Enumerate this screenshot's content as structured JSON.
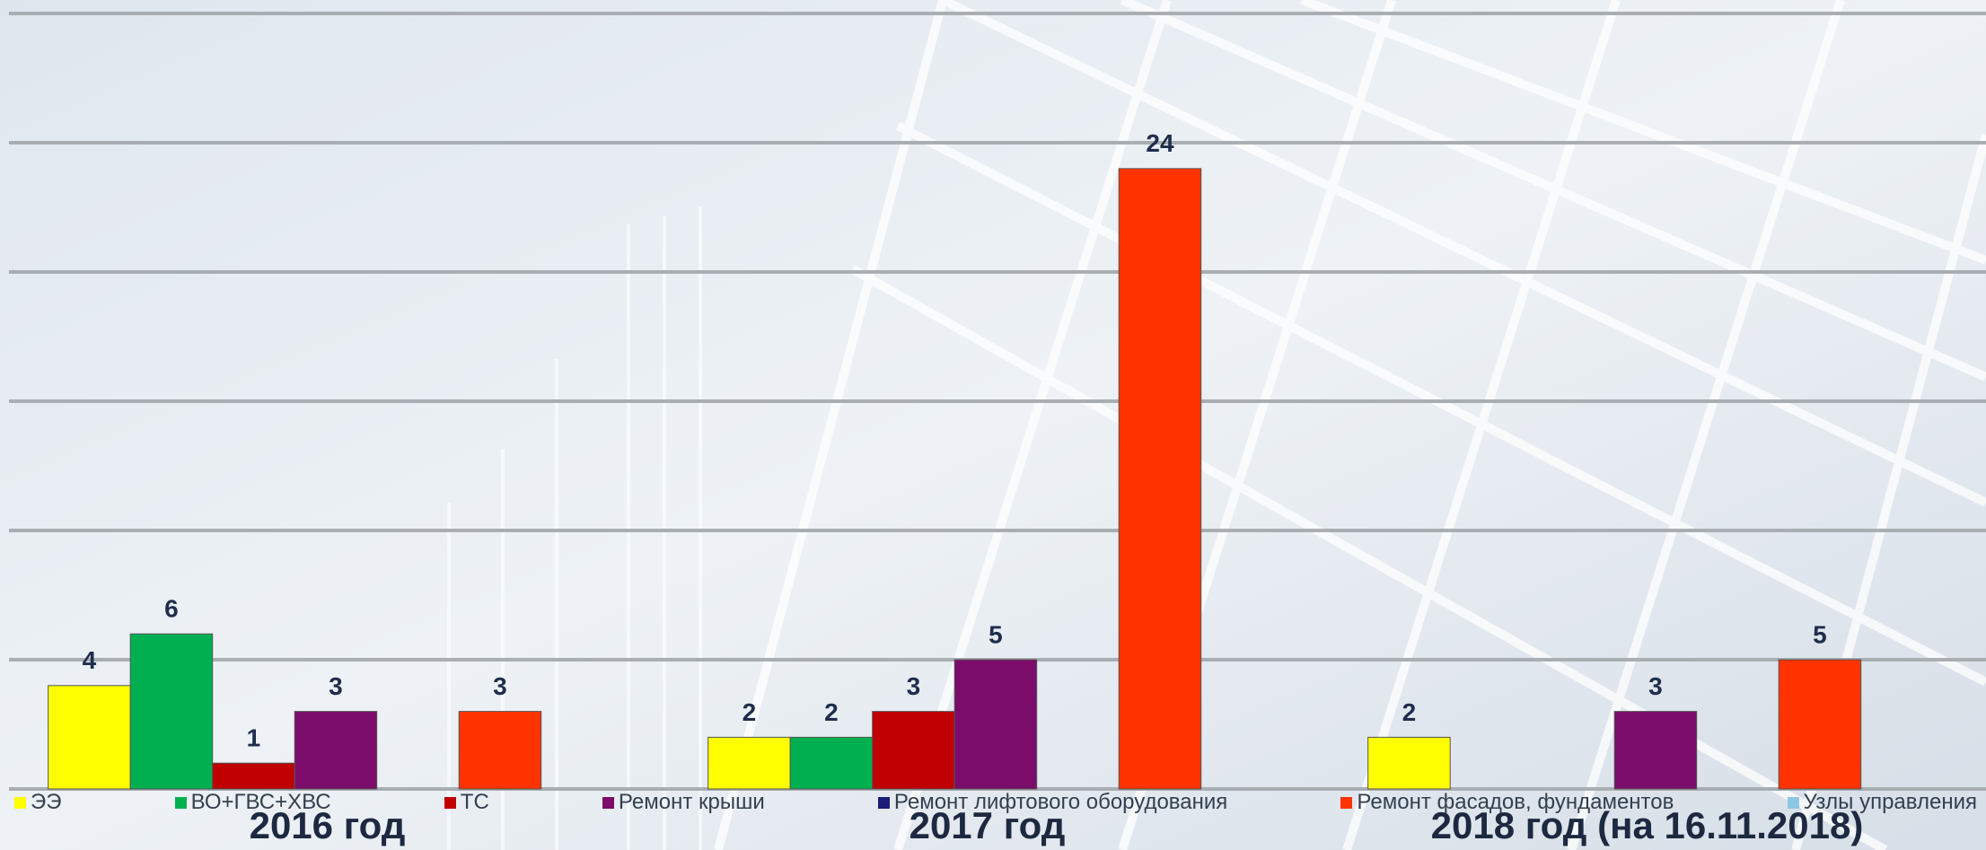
{
  "chart_data": {
    "type": "bar",
    "categories": [
      "2016 год",
      "2017 год",
      "2018 год (на 16.11.2018)"
    ],
    "series": [
      {
        "name": "ЭЭ",
        "color": "#ffff00",
        "values": [
          4,
          2,
          2
        ]
      },
      {
        "name": "ВО+ГВС+ХВС",
        "color": "#00b050",
        "values": [
          6,
          2,
          null
        ]
      },
      {
        "name": "ТС",
        "color": "#c00000",
        "values": [
          1,
          3,
          null
        ]
      },
      {
        "name": "Ремонт крыши",
        "color": "#7b0c6a",
        "values": [
          3,
          5,
          3
        ]
      },
      {
        "name": "Ремонт лифтового оборудования",
        "color": "#1c1c7a",
        "values": [
          null,
          null,
          null
        ]
      },
      {
        "name": "Ремонт фасадов, фундаментов",
        "color": "#ff3300",
        "values": [
          3,
          24,
          5
        ]
      },
      {
        "name": "Узлы управления",
        "color": "#8ec6e6",
        "values": [
          null,
          null,
          null
        ]
      }
    ],
    "ylim": [
      0,
      30
    ],
    "yticks": [
      0,
      5,
      10,
      15,
      20,
      25,
      30
    ],
    "grid": true,
    "legend": "bottom"
  }
}
